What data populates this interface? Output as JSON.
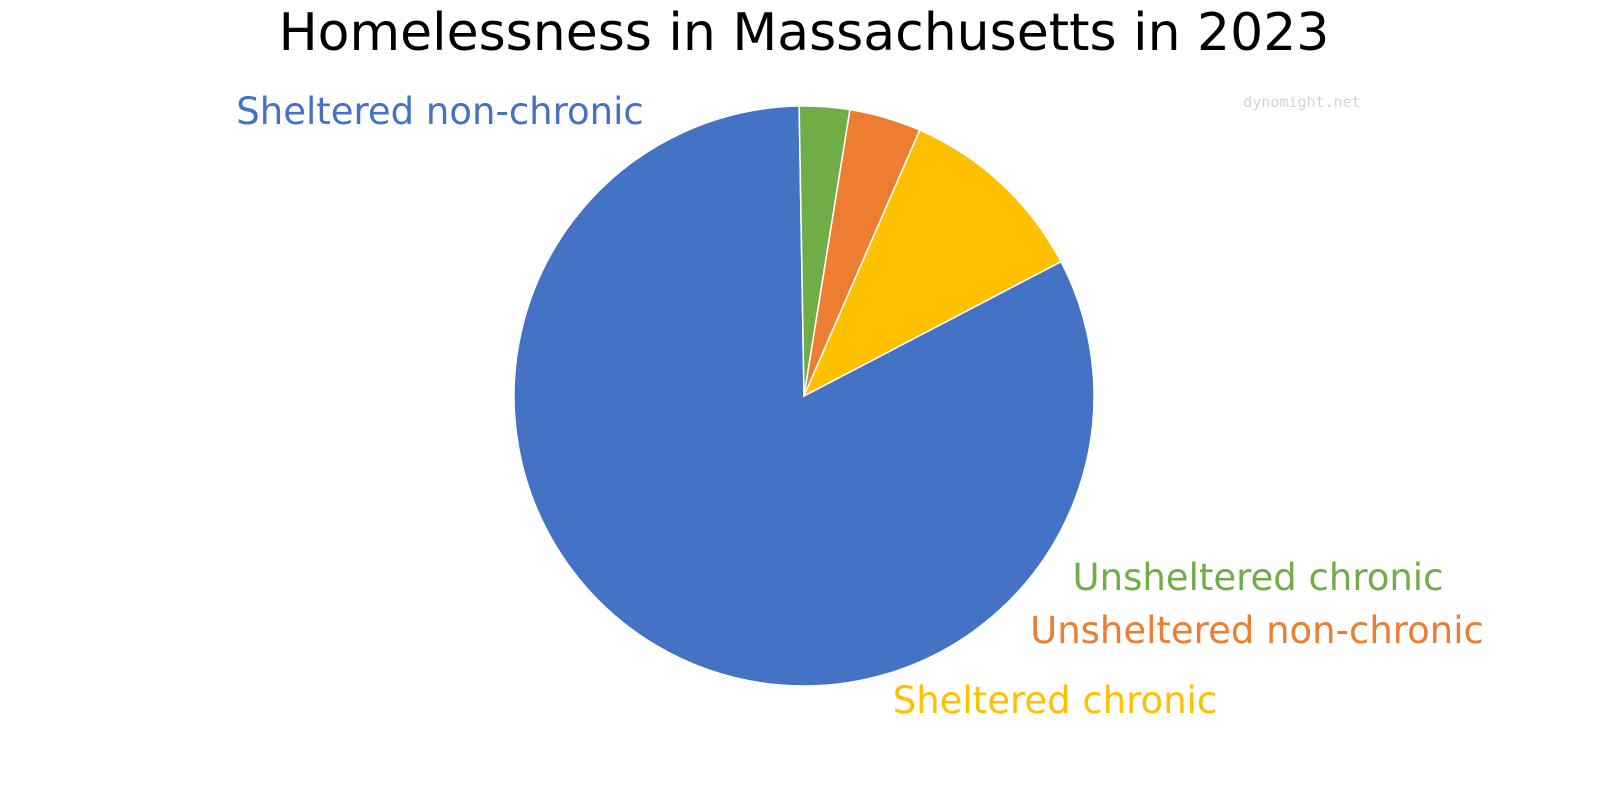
{
  "chart_data": {
    "type": "pie",
    "title": "Homelessness in Massachusetts in 2023",
    "watermark": "dynomight.net",
    "slices": [
      {
        "label": "Sheltered non-chronic",
        "value": 82.4,
        "color": "#4472C4"
      },
      {
        "label": "Unsheltered chronic",
        "value": 2.8,
        "color": "#70AD47"
      },
      {
        "label": "Unsheltered non-chronic",
        "value": 4.0,
        "color": "#ED7D31"
      },
      {
        "label": "Sheltered chronic",
        "value": 10.8,
        "color": "#FFC000"
      }
    ]
  }
}
